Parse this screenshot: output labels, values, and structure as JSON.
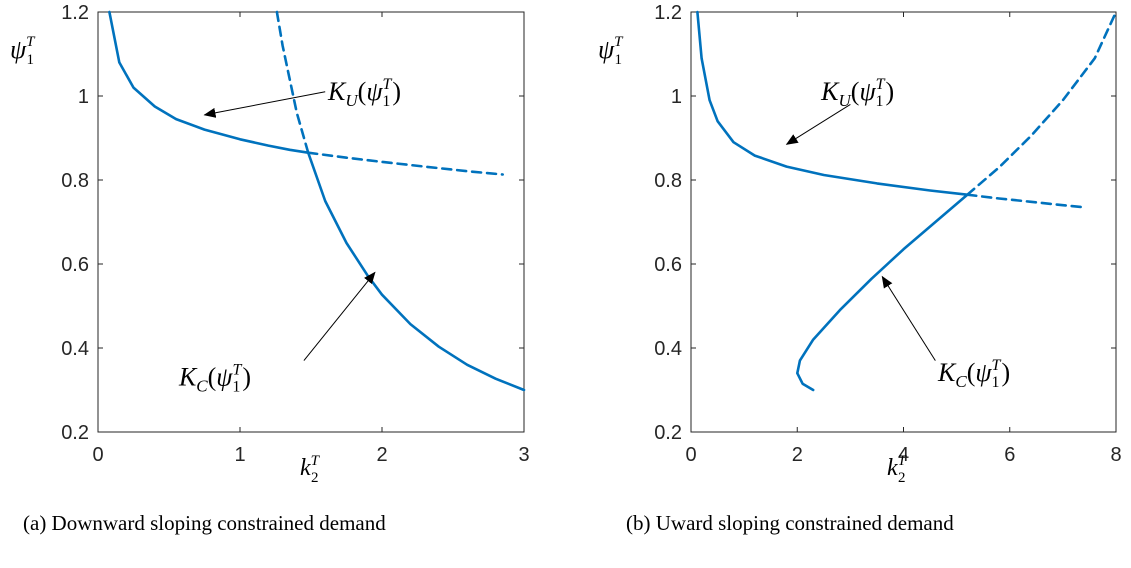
{
  "chart_data": [
    {
      "type": "line",
      "caption": "(a) Downward sloping constrained demand",
      "xlim": [
        0,
        3
      ],
      "ylim": [
        0.2,
        1.2
      ],
      "x_ticks": [
        0,
        1,
        2,
        3
      ],
      "y_ticks": [
        0.2,
        0.4,
        0.6,
        0.8,
        1,
        1.2
      ],
      "x_tick_labels": [
        "0",
        "1",
        "2",
        "3"
      ],
      "y_tick_labels": [
        "0.2",
        "0.4",
        "0.6",
        "0.8",
        "1",
        "1.2"
      ],
      "xlabel": {
        "base": "k",
        "sub": "2",
        "sup": "T"
      },
      "ylabel": {
        "base": "ψ",
        "sub": "1",
        "sup": "T"
      },
      "grid": false,
      "series": [
        {
          "label": "K_U solid",
          "style": "solid",
          "color": "#0072BD",
          "x": [
            0.08,
            0.15,
            0.25,
            0.4,
            0.55,
            0.75,
            1.0,
            1.2,
            1.35,
            1.48
          ],
          "y": [
            1.2,
            1.08,
            1.02,
            0.975,
            0.945,
            0.92,
            0.897,
            0.882,
            0.872,
            0.865
          ]
        },
        {
          "label": "K_U dashed",
          "style": "dashed",
          "color": "#0072BD",
          "x": [
            1.48,
            1.75,
            2.0,
            2.3,
            2.6,
            2.85
          ],
          "y": [
            0.865,
            0.853,
            0.843,
            0.832,
            0.821,
            0.813
          ]
        },
        {
          "label": "K_C dashed",
          "style": "dashed",
          "color": "#0072BD",
          "x": [
            1.26,
            1.3,
            1.35,
            1.4,
            1.48
          ],
          "y": [
            1.2,
            1.12,
            1.04,
            0.96,
            0.865
          ]
        },
        {
          "label": "K_C solid",
          "style": "solid",
          "color": "#0072BD",
          "x": [
            1.48,
            1.6,
            1.75,
            1.9,
            2.0,
            2.2,
            2.4,
            2.6,
            2.8,
            3.0
          ],
          "y": [
            0.865,
            0.75,
            0.65,
            0.572,
            0.527,
            0.457,
            0.403,
            0.36,
            0.327,
            0.3
          ]
        }
      ],
      "annotations": [
        {
          "text_base": "K",
          "text_sub": "U",
          "text_arg": "ψ",
          "arg_sub": "1",
          "arg_sup": "T",
          "text_at": [
            1.62,
            1.01
          ],
          "arrow_from": [
            1.6,
            1.01
          ],
          "arrow_to": [
            0.75,
            0.955
          ]
        },
        {
          "text_base": "K",
          "text_sub": "C",
          "text_arg": "ψ",
          "arg_sub": "1",
          "arg_sup": "T",
          "text_at": [
            0.57,
            0.33
          ],
          "arrow_from": [
            1.45,
            0.37
          ],
          "arrow_to": [
            1.95,
            0.58
          ]
        }
      ]
    },
    {
      "type": "line",
      "caption": "(b) Uward sloping constrained demand",
      "xlim": [
        0,
        8
      ],
      "ylim": [
        0.2,
        1.2
      ],
      "x_ticks": [
        0,
        2,
        4,
        6,
        8
      ],
      "y_ticks": [
        0.2,
        0.4,
        0.6,
        0.8,
        1,
        1.2
      ],
      "x_tick_labels": [
        "0",
        "2",
        "4",
        "6",
        "8"
      ],
      "y_tick_labels": [
        "0.2",
        "0.4",
        "0.6",
        "0.8",
        "1",
        "1.2"
      ],
      "xlabel": {
        "base": "k",
        "sub": "2",
        "sup": "T"
      },
      "ylabel": {
        "base": "ψ",
        "sub": "1",
        "sup": "T"
      },
      "grid": false,
      "series": [
        {
          "label": "K_U solid",
          "style": "solid",
          "color": "#0072BD",
          "x": [
            0.12,
            0.2,
            0.35,
            0.5,
            0.8,
            1.2,
            1.8,
            2.5,
            3.5,
            4.5,
            5.2
          ],
          "y": [
            1.2,
            1.09,
            0.99,
            0.94,
            0.89,
            0.858,
            0.832,
            0.812,
            0.792,
            0.775,
            0.765
          ]
        },
        {
          "label": "K_U dashed",
          "style": "dashed",
          "color": "#0072BD",
          "x": [
            5.2,
            5.8,
            6.4,
            7.0,
            7.4
          ],
          "y": [
            0.765,
            0.756,
            0.748,
            0.74,
            0.735
          ]
        },
        {
          "label": "K_C solid",
          "style": "solid",
          "color": "#0072BD",
          "x": [
            2.3,
            2.1,
            2.0,
            2.05,
            2.3,
            2.8,
            3.4,
            4.0,
            4.6,
            5.2
          ],
          "y": [
            0.3,
            0.315,
            0.34,
            0.37,
            0.42,
            0.49,
            0.565,
            0.635,
            0.7,
            0.765
          ]
        },
        {
          "label": "K_C dashed",
          "style": "dashed",
          "color": "#0072BD",
          "x": [
            5.2,
            5.8,
            6.4,
            7.0,
            7.6,
            8.0
          ],
          "y": [
            0.765,
            0.83,
            0.905,
            0.99,
            1.09,
            1.2
          ]
        }
      ],
      "annotations": [
        {
          "text_base": "K",
          "text_sub": "U",
          "text_arg": "ψ",
          "arg_sub": "1",
          "arg_sup": "T",
          "text_at": [
            2.45,
            1.01
          ],
          "arrow_from": [
            3.0,
            0.98
          ],
          "arrow_to": [
            1.8,
            0.885
          ]
        },
        {
          "text_base": "K",
          "text_sub": "C",
          "text_arg": "ψ",
          "arg_sub": "1",
          "arg_sup": "T",
          "text_at": [
            4.65,
            0.34
          ],
          "arrow_from": [
            4.6,
            0.37
          ],
          "arrow_to": [
            3.6,
            0.57
          ]
        }
      ]
    }
  ]
}
